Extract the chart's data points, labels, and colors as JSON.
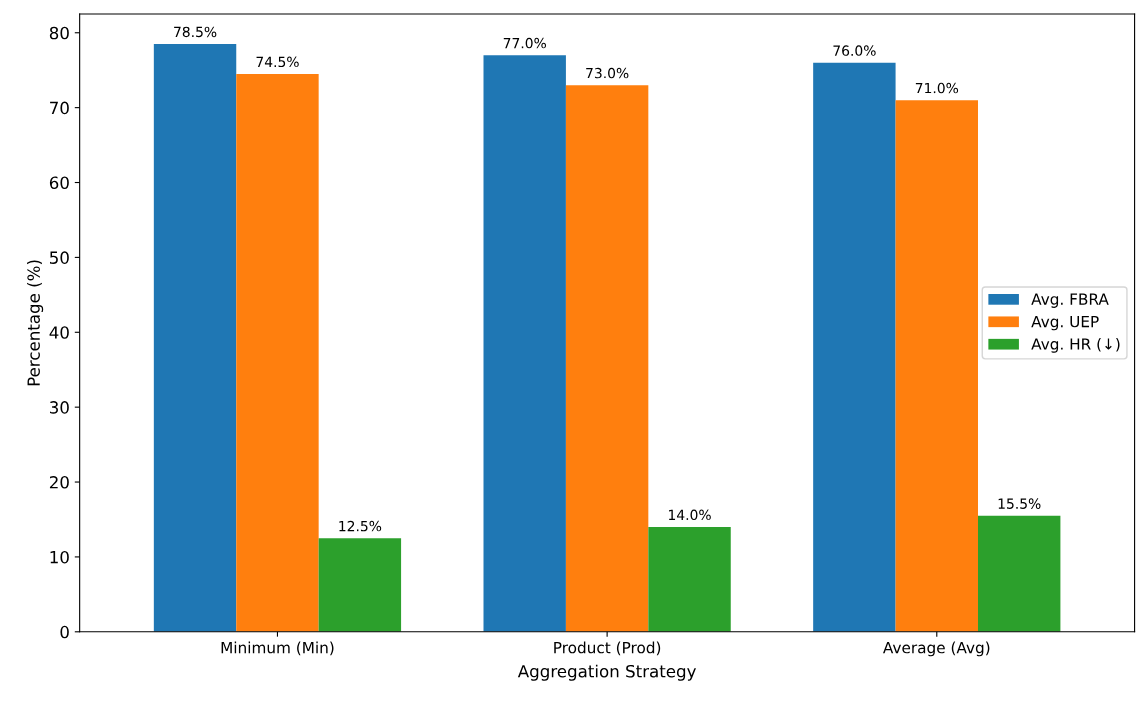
{
  "chart_data": {
    "type": "bar",
    "xlabel": "Aggregation Strategy",
    "ylabel": "Percentage (%)",
    "categories": [
      "Minimum (Min)",
      "Product (Prod)",
      "Average (Avg)"
    ],
    "series": [
      {
        "name": "Avg. FBRA",
        "color": "#1f77b4",
        "values": [
          78.5,
          77.0,
          76.0
        ],
        "value_labels": [
          "78.5%",
          "77.0%",
          "76.0%"
        ]
      },
      {
        "name": "Avg. UEP",
        "color": "#ff7f0e",
        "values": [
          74.5,
          73.0,
          71.0
        ],
        "value_labels": [
          "74.5%",
          "73.0%",
          "71.0%"
        ]
      },
      {
        "name": "Avg. HR (↓)",
        "color": "#2ca02c",
        "values": [
          12.5,
          14.0,
          15.5
        ],
        "value_labels": [
          "12.5%",
          "14.0%",
          "15.5%"
        ]
      }
    ],
    "ylim": [
      0,
      82.5
    ],
    "yticks": [
      0,
      10,
      20,
      30,
      40,
      50,
      60,
      70,
      80
    ],
    "grid": false,
    "legend": "right"
  }
}
